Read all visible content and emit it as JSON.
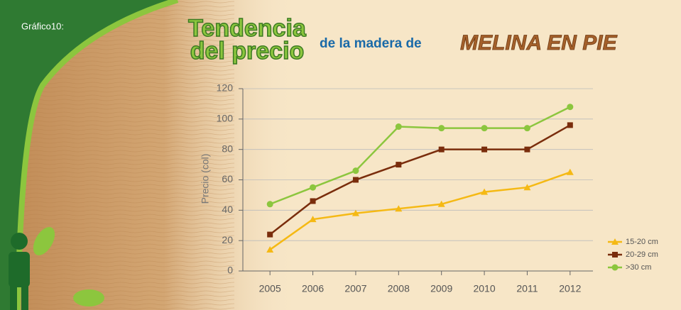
{
  "chart_data": {
    "type": "line",
    "figure_label": "Gráfico10:",
    "title_lines": [
      "Tendencia",
      "del precio"
    ],
    "subtitle": "de la madera de",
    "title_highlight": "MELINA EN PIE",
    "ylabel": "Precio (col)",
    "categories": [
      "2005",
      "2006",
      "2007",
      "2008",
      "2009",
      "2010",
      "2011",
      "2012"
    ],
    "series": [
      {
        "name": "15-20 cm",
        "color": "#f5b914",
        "marker": "triangle",
        "values": [
          14,
          34,
          38,
          41,
          44,
          52,
          55,
          65
        ]
      },
      {
        "name": "20-29 cm",
        "color": "#7a2d0c",
        "marker": "square",
        "values": [
          24,
          46,
          60,
          70,
          80,
          80,
          80,
          96
        ]
      },
      {
        "name": ">30 cm",
        "color": "#8cc63e",
        "marker": "circle",
        "values": [
          44,
          55,
          66,
          95,
          94,
          94,
          94,
          108
        ]
      }
    ],
    "ylim": [
      0,
      120
    ],
    "yticks": [
      0,
      20,
      40,
      60,
      80,
      100,
      120
    ],
    "grid": true,
    "legend": "lower right"
  }
}
